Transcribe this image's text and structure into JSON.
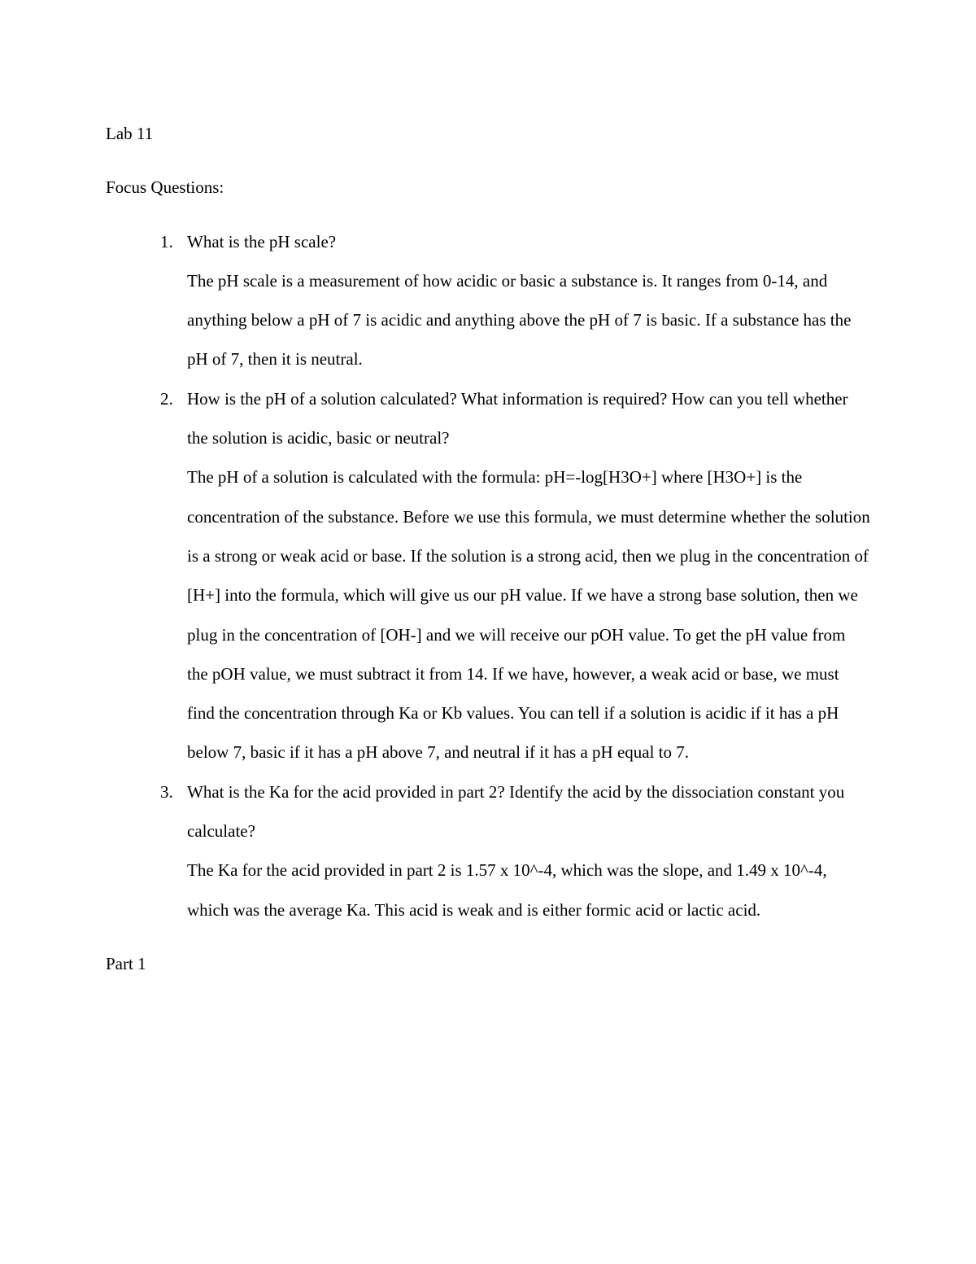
{
  "header": {
    "lab_title": "Lab 11"
  },
  "section_title": "Focus Questions:",
  "questions": [
    {
      "question": "What is the pH scale?",
      "answer": "The pH scale is a measurement of how acidic or basic a substance is. It ranges from 0-14, and anything below a pH of 7 is acidic and anything above the pH of 7 is basic. If a substance has the pH of 7, then it is neutral."
    },
    {
      "question": "How is the pH of a solution calculated? What information is required? How can you tell whether the solution is acidic, basic or neutral?",
      "answer": "The pH of a solution is calculated with the formula: pH=-log[H3O+] where [H3O+] is the concentration of the substance. Before we use this formula, we must determine whether the solution is a strong or weak acid or base. If the solution is a strong acid, then we plug in the concentration of [H+] into the formula, which will give us our pH value. If we have a strong base solution, then we plug in the concentration of [OH-] and we will receive our pOH value. To get the pH value from the pOH value, we must subtract it from 14. If we have, however, a weak acid or base, we must find the concentration through Ka or Kb values. You can tell if a solution is acidic if it has a pH below 7, basic if it has a pH above 7, and neutral if it has a pH equal to 7."
    },
    {
      "question": "What is the Ka for the acid provided in part 2? Identify the acid by the dissociation constant you calculate?",
      "answer": "The Ka for the acid provided in part 2 is 1.57 x 10^-4, which was the slope, and 1.49 x 10^-4, which was the average Ka. This acid is weak and is either formic acid or lactic acid."
    }
  ],
  "part_title": "Part 1"
}
